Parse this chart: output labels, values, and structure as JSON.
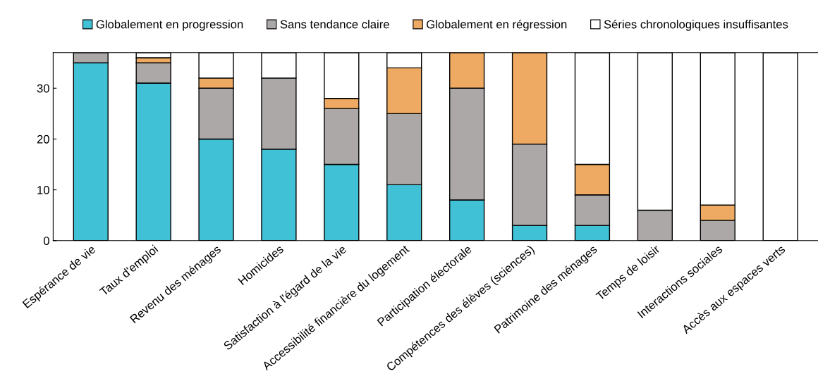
{
  "chart_data": {
    "type": "bar",
    "stacked": true,
    "categories": [
      "Espérance de vie",
      "Taux d'emploi",
      "Revenu des ménages",
      "Homicides",
      "Satisfaction à l'égard de la vie",
      "Accessibilité financière du logement",
      "Participation électorale",
      "Compétences des élèves (sciences)",
      "Patrimoine des ménages",
      "Temps de loisir",
      "Interactions sociales",
      "Accès aux espaces verts"
    ],
    "series": [
      {
        "name": "Globalement en progression",
        "color": "#41c1d6",
        "values": [
          35,
          31,
          20,
          18,
          15,
          11,
          8,
          3,
          3,
          0,
          0,
          0
        ]
      },
      {
        "name": "Sans tendance claire",
        "color": "#aba8a7",
        "values": [
          2,
          4,
          10,
          14,
          11,
          14,
          22,
          16,
          6,
          6,
          4,
          0
        ]
      },
      {
        "name": "Globalement en régression",
        "color": "#eeaa63",
        "values": [
          0,
          1,
          2,
          0,
          2,
          9,
          7,
          18,
          6,
          0,
          3,
          0
        ]
      },
      {
        "name": "Séries chronologiques insuffisantes",
        "color": "#ffffff",
        "values": [
          0,
          1,
          5,
          5,
          9,
          3,
          0,
          0,
          22,
          31,
          30,
          37
        ]
      }
    ],
    "ylim": [
      0,
      37
    ],
    "yticks": [
      0,
      10,
      20,
      30
    ],
    "grid": false,
    "legend": "top"
  }
}
